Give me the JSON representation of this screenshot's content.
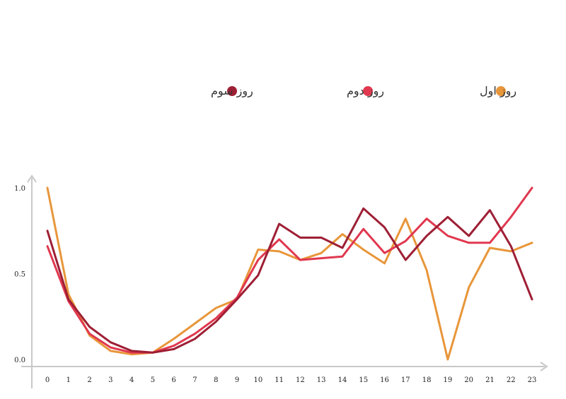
{
  "chart_data": {
    "type": "line",
    "x": [
      0,
      1,
      2,
      3,
      4,
      5,
      6,
      7,
      8,
      9,
      10,
      11,
      12,
      13,
      14,
      15,
      16,
      17,
      18,
      19,
      20,
      21,
      22,
      23
    ],
    "xticks": [
      "0",
      "1",
      "2",
      "3",
      "4",
      "5",
      "6",
      "7",
      "8",
      "9",
      "10",
      "11",
      "12",
      "13",
      "14",
      "15",
      "16",
      "17",
      "18",
      "19",
      "20",
      "21",
      "22",
      "23"
    ],
    "yticks": [
      "0.0",
      "0.5",
      "1.0"
    ],
    "ylim": [
      0,
      1
    ],
    "xlim": [
      0,
      23
    ],
    "grid": false,
    "legend_position": "top",
    "series": [
      {
        "name": "روز اول",
        "color": "#E8963A",
        "values": [
          1.0,
          0.38,
          0.14,
          0.05,
          0.03,
          0.04,
          0.12,
          0.21,
          0.3,
          0.35,
          0.64,
          0.63,
          0.58,
          0.62,
          0.73,
          0.64,
          0.56,
          0.82,
          0.52,
          0.0,
          0.42,
          0.65,
          0.63,
          0.68
        ]
      },
      {
        "name": "روز دوم",
        "color": "#E0384F",
        "values": [
          0.66,
          0.34,
          0.15,
          0.07,
          0.04,
          0.04,
          0.08,
          0.15,
          0.24,
          0.36,
          0.58,
          0.7,
          0.58,
          0.59,
          0.6,
          0.76,
          0.62,
          0.69,
          0.82,
          0.72,
          0.68,
          0.68,
          0.83,
          1.0
        ]
      },
      {
        "name": "روز سوم",
        "color": "#9E1F35",
        "values": [
          0.75,
          0.35,
          0.19,
          0.1,
          0.05,
          0.04,
          0.06,
          0.12,
          0.22,
          0.35,
          0.49,
          0.79,
          0.71,
          0.71,
          0.65,
          0.88,
          0.77,
          0.58,
          0.72,
          0.83,
          0.72,
          0.87,
          0.66,
          0.35
        ]
      }
    ]
  }
}
